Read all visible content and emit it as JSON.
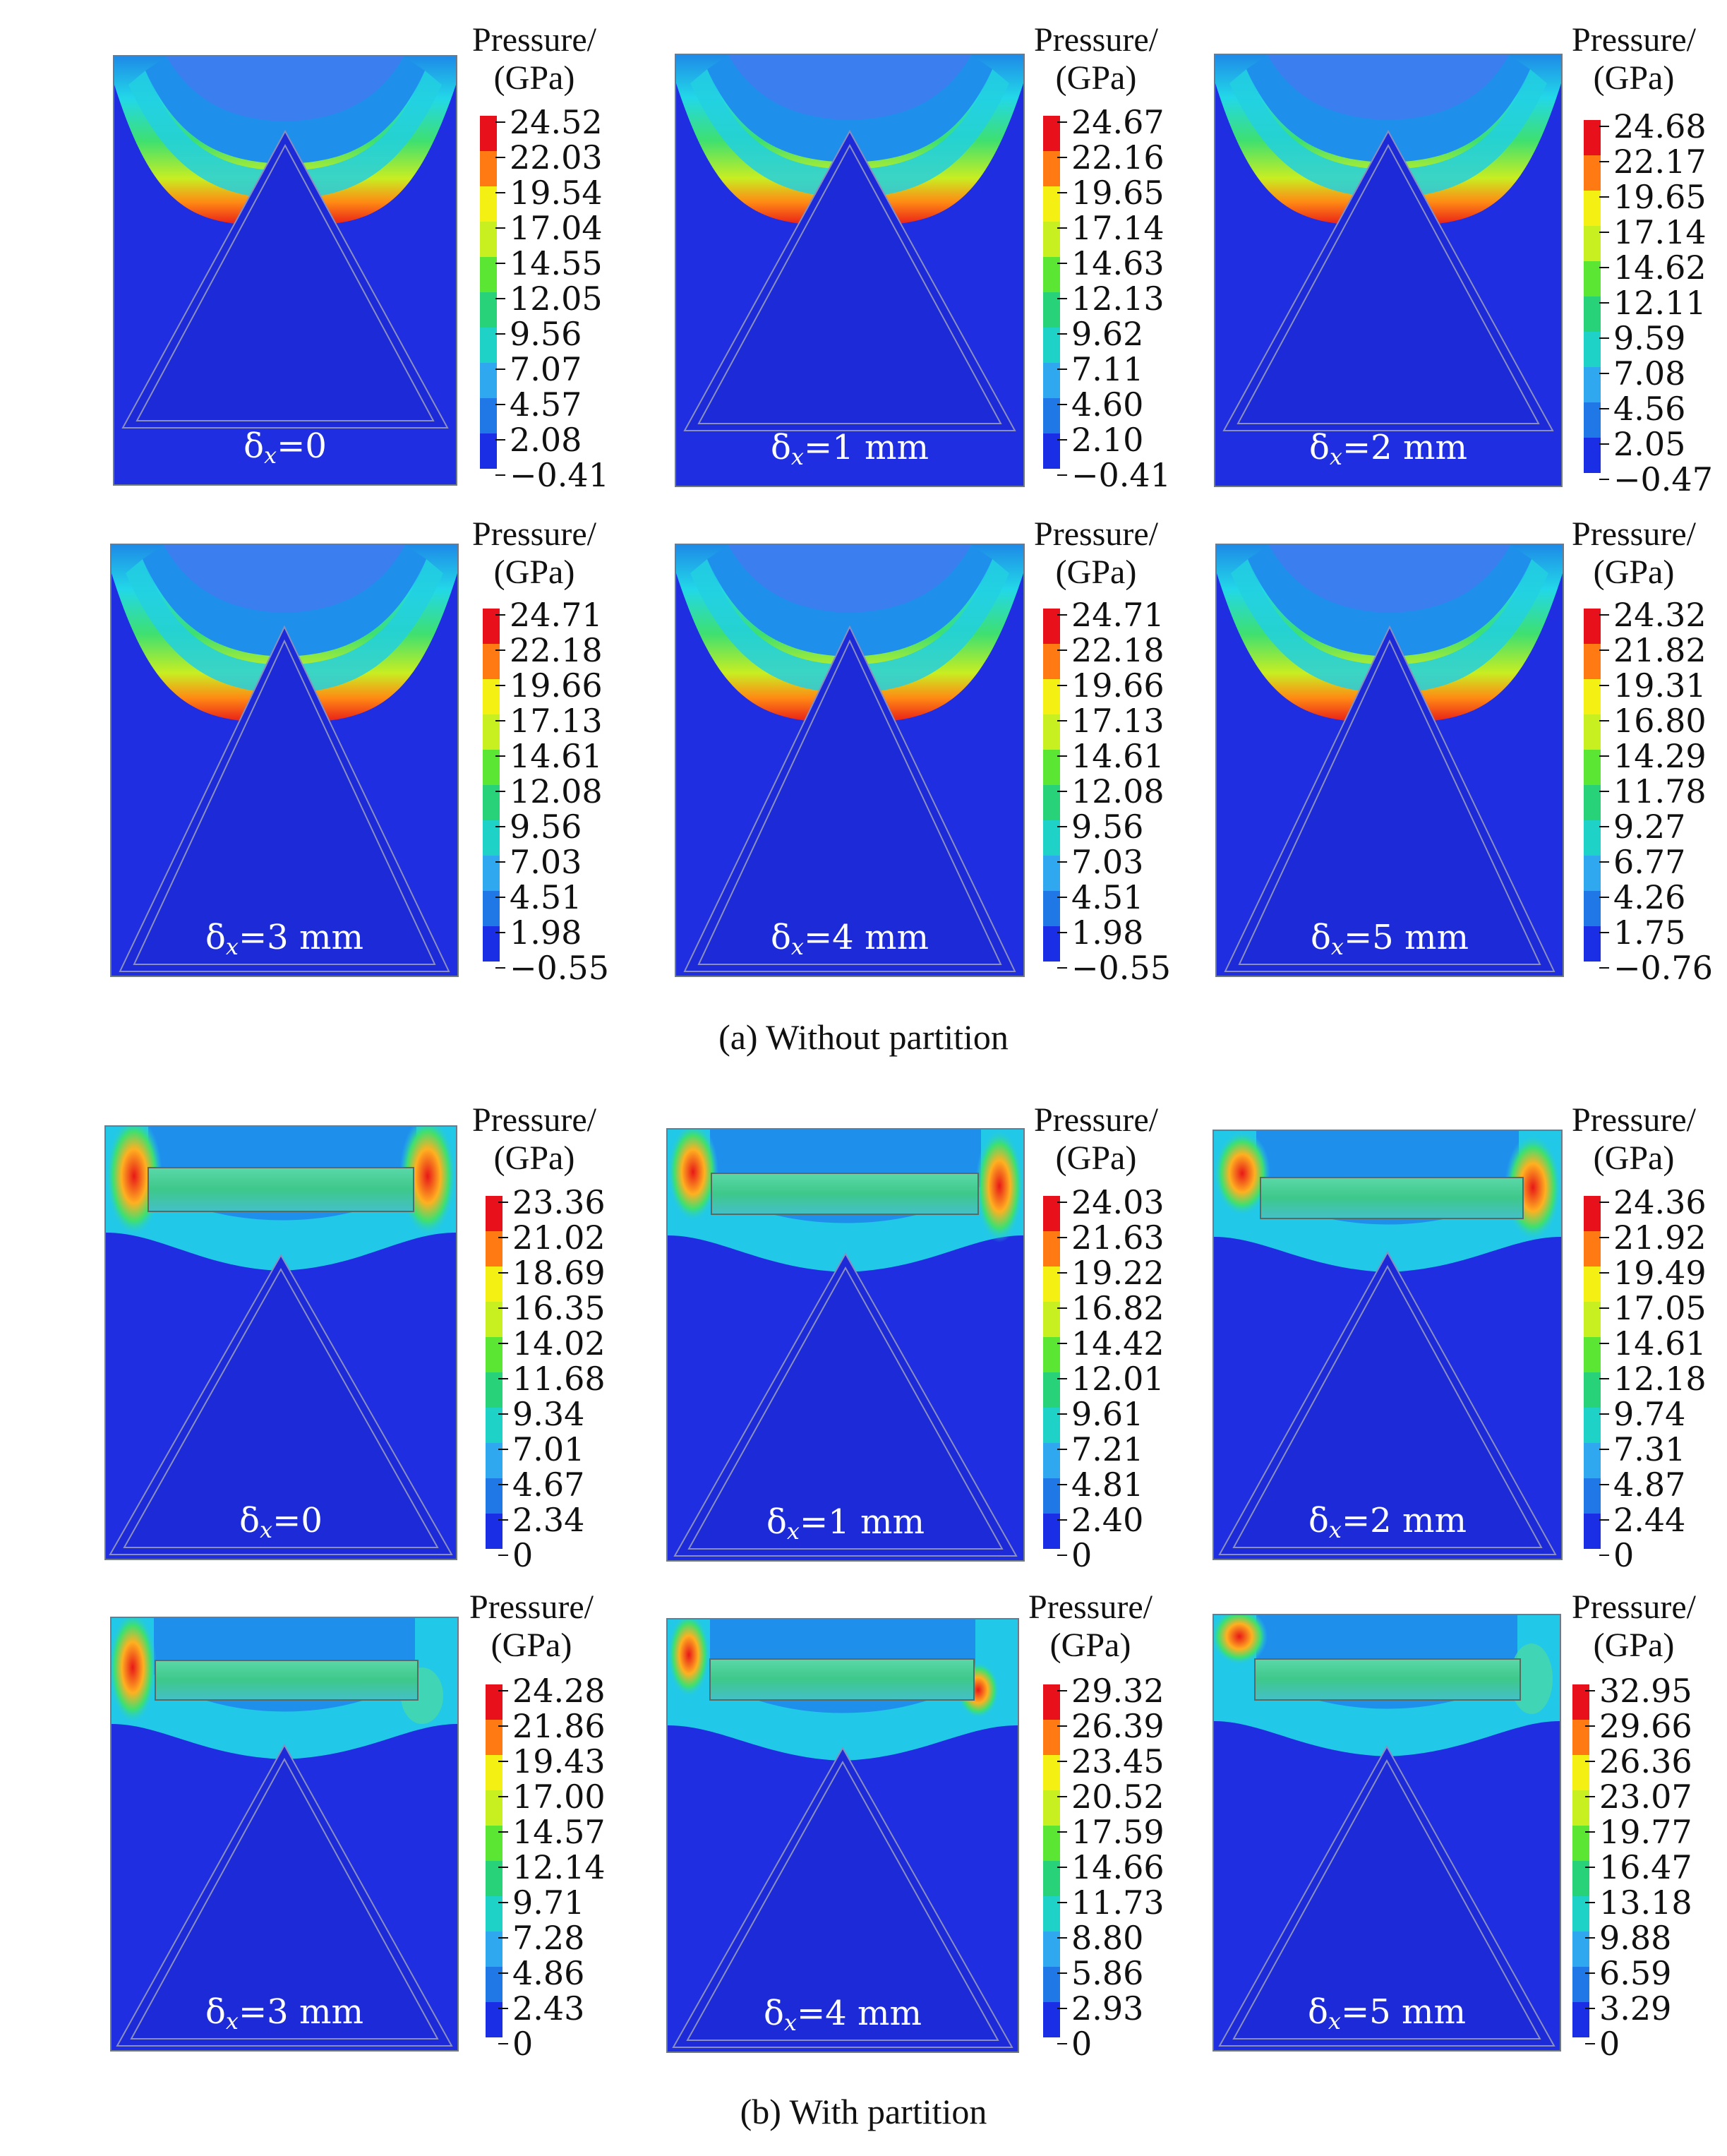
{
  "legend_label_line1": "Pressure/",
  "legend_label_line2": "(GPa)",
  "delta_symbol": "δ",
  "delta_subscript": "x",
  "colorbar_colors": [
    "#e8101a",
    "#ff7a12",
    "#f4f014",
    "#c8f020",
    "#5ae632",
    "#28d278",
    "#1ed2c8",
    "#30a8f0",
    "#1f78e6",
    "#1a2ee6"
  ],
  "group_a": {
    "caption": "(a) Without partition",
    "panels": [
      {
        "label": "=0",
        "ticks": [
          "24.52",
          "22.03",
          "19.54",
          "17.04",
          "14.55",
          "12.05",
          "9.56",
          "7.07",
          "4.57",
          "2.08",
          "−0.41"
        ]
      },
      {
        "label": "=1 mm",
        "ticks": [
          "24.67",
          "22.16",
          "19.65",
          "17.14",
          "14.63",
          "12.13",
          "9.62",
          "7.11",
          "4.60",
          "2.10",
          "−0.41"
        ]
      },
      {
        "label": "=2 mm",
        "ticks": [
          "24.68",
          "22.17",
          "19.65",
          "17.14",
          "14.62",
          "12.11",
          "9.59",
          "7.08",
          "4.56",
          "2.05",
          "−0.47"
        ]
      },
      {
        "label": "=3 mm",
        "ticks": [
          "24.71",
          "22.18",
          "19.66",
          "17.13",
          "14.61",
          "12.08",
          "9.56",
          "7.03",
          "4.51",
          "1.98",
          "−0.55"
        ]
      },
      {
        "label": "=4 mm",
        "ticks": [
          "24.71",
          "22.18",
          "19.66",
          "17.13",
          "14.61",
          "12.08",
          "9.56",
          "7.03",
          "4.51",
          "1.98",
          "−0.55"
        ]
      },
      {
        "label": "=5 mm",
        "ticks": [
          "24.32",
          "21.82",
          "19.31",
          "16.80",
          "14.29",
          "11.78",
          "9.27",
          "6.77",
          "4.26",
          "1.75",
          "−0.76"
        ]
      }
    ]
  },
  "group_b": {
    "caption": "(b) With partition",
    "panels": [
      {
        "label": "=0",
        "ticks": [
          "23.36",
          "21.02",
          "18.69",
          "16.35",
          "14.02",
          "11.68",
          "9.34",
          "7.01",
          "4.67",
          "2.34",
          "0"
        ]
      },
      {
        "label": "=1 mm",
        "ticks": [
          "24.03",
          "21.63",
          "19.22",
          "16.82",
          "14.42",
          "12.01",
          "9.61",
          "7.21",
          "4.81",
          "2.40",
          "0"
        ]
      },
      {
        "label": "=2 mm",
        "ticks": [
          "24.36",
          "21.92",
          "19.49",
          "17.05",
          "14.61",
          "12.18",
          "9.74",
          "7.31",
          "4.87",
          "2.44",
          "0"
        ]
      },
      {
        "label": "=3 mm",
        "ticks": [
          "24.28",
          "21.86",
          "19.43",
          "17.00",
          "14.57",
          "12.14",
          "9.71",
          "7.28",
          "4.86",
          "2.43",
          "0"
        ]
      },
      {
        "label": "=4 mm",
        "ticks": [
          "29.32",
          "26.39",
          "23.45",
          "20.52",
          "17.59",
          "14.66",
          "11.73",
          "8.80",
          "5.86",
          "2.93",
          "0"
        ]
      },
      {
        "label": "=5 mm",
        "ticks": [
          "32.95",
          "29.66",
          "26.36",
          "23.07",
          "19.77",
          "16.47",
          "13.18",
          "9.88",
          "6.59",
          "3.29",
          "0"
        ]
      }
    ]
  }
}
